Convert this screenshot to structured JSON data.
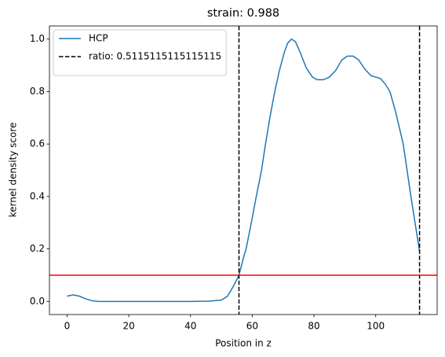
{
  "chart_data": {
    "type": "line",
    "title": "strain: 0.988",
    "xlabel": "Position in z",
    "ylabel": "kernel density score",
    "xlim": [
      -5.7,
      119.9
    ],
    "ylim": [
      -0.05,
      1.05
    ],
    "xticks": [
      0,
      20,
      40,
      60,
      80,
      100
    ],
    "yticks": [
      {
        "value": 0,
        "label": "0.0"
      },
      {
        "value": 0.2,
        "label": "0.2"
      },
      {
        "value": 0.4,
        "label": "0.4"
      },
      {
        "value": 0.6,
        "label": "0.6"
      },
      {
        "value": 0.8,
        "label": "0.8"
      },
      {
        "value": 1,
        "label": "1.0"
      }
    ],
    "legend": "upper left",
    "series": [
      {
        "name": "HCP",
        "color": "#1f77b4",
        "x": [
          0,
          2,
          4,
          6,
          8,
          10,
          20,
          30,
          40,
          46,
          50,
          52,
          54,
          55.7,
          57,
          58,
          59.7,
          61.3,
          63,
          64.3,
          65.7,
          67.3,
          68.8,
          70.4,
          71.5,
          72.7,
          74,
          75.5,
          77.5,
          79.5,
          81,
          83,
          85,
          87,
          89,
          90.8,
          92.7,
          94.5,
          96.5,
          98.5,
          100,
          101.5,
          103,
          104.6,
          106.5,
          108.9,
          111.4,
          114.2
        ],
        "values": [
          0.02,
          0.025,
          0.02,
          0.01,
          0.003,
          0,
          0,
          0,
          0,
          0.001,
          0.005,
          0.02,
          0.06,
          0.1,
          0.16,
          0.2,
          0.3,
          0.4,
          0.5,
          0.6,
          0.7,
          0.8,
          0.88,
          0.95,
          0.985,
          1.0,
          0.99,
          0.95,
          0.89,
          0.855,
          0.845,
          0.845,
          0.855,
          0.88,
          0.92,
          0.935,
          0.935,
          0.92,
          0.885,
          0.86,
          0.855,
          0.85,
          0.83,
          0.8,
          0.72,
          0.6,
          0.4,
          0.19
        ]
      },
      {
        "name": "ratio: 0.5115115115115115",
        "color": "#000000",
        "dash": "dashed",
        "vlines": [
          55.7,
          114.2
        ]
      }
    ],
    "hlines": [
      {
        "value": 0.1,
        "color": "#ff0000"
      }
    ]
  }
}
